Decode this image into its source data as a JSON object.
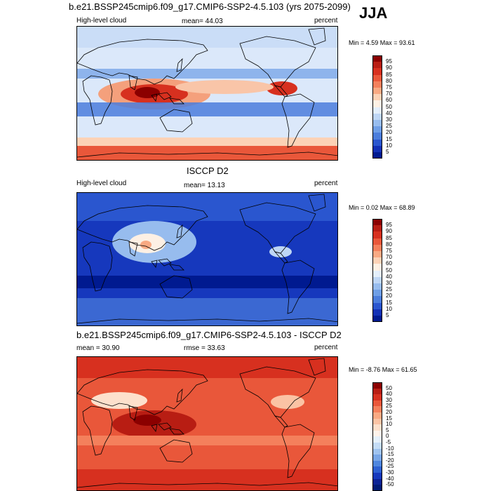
{
  "main_title": "b.e21.BSSP245cmip6.f09_g17.CMIP6-SSP2-4.5.103 (yrs 2075-2099)",
  "season": "JJA",
  "panels": [
    {
      "id": "model",
      "title": "",
      "field_label": "High-level cloud",
      "stat_label": "mean=  44.03",
      "units": "percent",
      "minmax": "Min =   4.59 Max =  93.61",
      "colorbar_labels": [
        "95",
        "90",
        "85",
        "80",
        "75",
        "70",
        "60",
        "50",
        "40",
        "30",
        "25",
        "20",
        "15",
        "10",
        "5"
      ],
      "colorbar_colors": [
        "#8b0000",
        "#b81d13",
        "#d7301f",
        "#e9573a",
        "#f4805c",
        "#f9a983",
        "#fcd2b6",
        "#fdf0e4",
        "#e3eefb",
        "#bed6f5",
        "#97bcee",
        "#6e9ee6",
        "#4b7ddc",
        "#2a56cf",
        "#1230b6",
        "#001a90"
      ]
    },
    {
      "id": "obs",
      "title": "ISCCP D2",
      "field_label": "High-level cloud",
      "stat_label": "mean=  13.13",
      "units": "percent",
      "minmax": "Min =   0.02 Max =  68.89",
      "colorbar_labels": [
        "95",
        "90",
        "85",
        "80",
        "75",
        "70",
        "60",
        "50",
        "40",
        "30",
        "25",
        "20",
        "15",
        "10",
        "5"
      ],
      "colorbar_colors": [
        "#8b0000",
        "#b81d13",
        "#d7301f",
        "#e9573a",
        "#f4805c",
        "#f9a983",
        "#fcd2b6",
        "#fdf0e4",
        "#e3eefb",
        "#bed6f5",
        "#97bcee",
        "#6e9ee6",
        "#4b7ddc",
        "#2a56cf",
        "#1230b6",
        "#001a90"
      ]
    },
    {
      "id": "diff",
      "title": "b.e21.BSSP245cmip6.f09_g17.CMIP6-SSP2-4.5.103 - ISCCP D2",
      "field_label": "mean =  30.90",
      "stat_label": "rmse =  33.63",
      "units": "percent",
      "minmax": "Min =  -8.76 Max =  61.65",
      "colorbar_labels": [
        "50",
        "40",
        "30",
        "25",
        "20",
        "15",
        "10",
        "5",
        "0",
        "-5",
        "-10",
        "-15",
        "-20",
        "-25",
        "-30",
        "-40",
        "-50"
      ],
      "colorbar_colors": [
        "#8b0000",
        "#b81d13",
        "#d7301f",
        "#e9573a",
        "#f4805c",
        "#f9a983",
        "#fbc3a4",
        "#fde0cc",
        "#fdf2ea",
        "#e5f0fb",
        "#c4dcf6",
        "#9fc3ef",
        "#78a6e7",
        "#4f86de",
        "#2d60d2",
        "#1638bd",
        "#0a2296",
        "#001a75"
      ]
    }
  ]
}
